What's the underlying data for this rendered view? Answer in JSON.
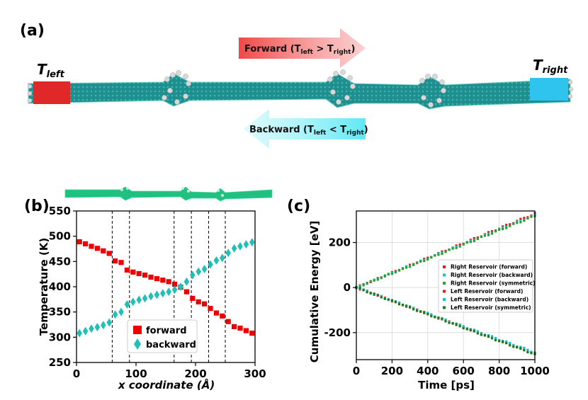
{
  "panel_a": {
    "label": "(a)",
    "t_left": {
      "main": "T",
      "sub": "left"
    },
    "t_right": {
      "main": "T",
      "sub": "right"
    },
    "forward_arrow": {
      "prefix": "Forward (T",
      "sub1": "left",
      "mid": " > T",
      "sub2": "right",
      "suffix": ")"
    },
    "backward_arrow": {
      "prefix": "Backward (T",
      "sub1": "left",
      "mid": " < T",
      "sub2": "right",
      "suffix": ")"
    },
    "colors": {
      "hot": "#e02020",
      "cold": "#2ec4ee",
      "tube": "#1f8e8e",
      "forward_arrow": "#f05050",
      "backward_arrow": "#8ef0f8"
    }
  },
  "chart_data": [
    {
      "id": "b",
      "label": "(b)",
      "type": "scatter",
      "xlabel": "x coordinate (Å)",
      "ylabel": "Temperature (K)",
      "xlim": [
        0,
        300
      ],
      "ylim": [
        250,
        550
      ],
      "xticks": [
        0,
        100,
        200,
        300
      ],
      "yticks": [
        250,
        300,
        350,
        400,
        450,
        500,
        550
      ],
      "vlines": [
        60,
        89,
        164,
        193,
        222,
        250
      ],
      "series": [
        {
          "name": "forward",
          "marker": "square",
          "color": "#ee0000",
          "x": [
            5,
            15,
            25,
            35,
            45,
            55,
            65,
            75,
            85,
            95,
            105,
            115,
            125,
            135,
            145,
            155,
            165,
            175,
            185,
            195,
            205,
            215,
            225,
            235,
            245,
            255,
            265,
            275,
            285,
            295
          ],
          "y": [
            489,
            485,
            480,
            476,
            471,
            466,
            451,
            448,
            433,
            429,
            426,
            423,
            419,
            416,
            413,
            410,
            405,
            399,
            390,
            377,
            370,
            366,
            357,
            348,
            342,
            331,
            321,
            318,
            313,
            308
          ]
        },
        {
          "name": "backward",
          "marker": "diamond",
          "color": "#20c0b8",
          "x": [
            5,
            15,
            25,
            35,
            45,
            55,
            65,
            75,
            85,
            95,
            105,
            115,
            125,
            135,
            145,
            155,
            165,
            175,
            185,
            195,
            205,
            215,
            225,
            235,
            245,
            255,
            265,
            275,
            285,
            295
          ],
          "y": [
            308,
            312,
            317,
            320,
            324,
            329,
            345,
            350,
            365,
            370,
            374,
            377,
            381,
            384,
            387,
            390,
            394,
            400,
            410,
            423,
            430,
            435,
            444,
            452,
            457,
            467,
            476,
            480,
            484,
            488
          ]
        }
      ],
      "legend": "lower center"
    },
    {
      "id": "c",
      "label": "(c)",
      "type": "scatter",
      "xlabel": "Time [ps]",
      "ylabel": "Cumulative Energy [eV]",
      "xlim": [
        0,
        1000
      ],
      "ylim": [
        -320,
        340
      ],
      "xticks": [
        0,
        200,
        400,
        600,
        800,
        1000
      ],
      "yticks": [
        -200,
        0,
        200
      ],
      "grid": true,
      "series": [
        {
          "name": "Right Reservoir (forward)",
          "color": "#e41a1c",
          "slope": 0.328
        },
        {
          "name": "Right Reservoir (backward)",
          "color": "#17becf",
          "slope": 0.322
        },
        {
          "name": "Right Reservoir (symmetric)",
          "color": "#2ca02c",
          "slope": 0.318
        },
        {
          "name": "Left Reservoir (forward)",
          "color": "#e41a1c",
          "slope": -0.292
        },
        {
          "name": "Left Reservoir (backward)",
          "color": "#17becf",
          "slope": -0.288
        },
        {
          "name": "Left Reservoir (symmetric)",
          "color": "#1a7a1a",
          "slope": -0.296
        }
      ],
      "legend": "center right"
    }
  ]
}
